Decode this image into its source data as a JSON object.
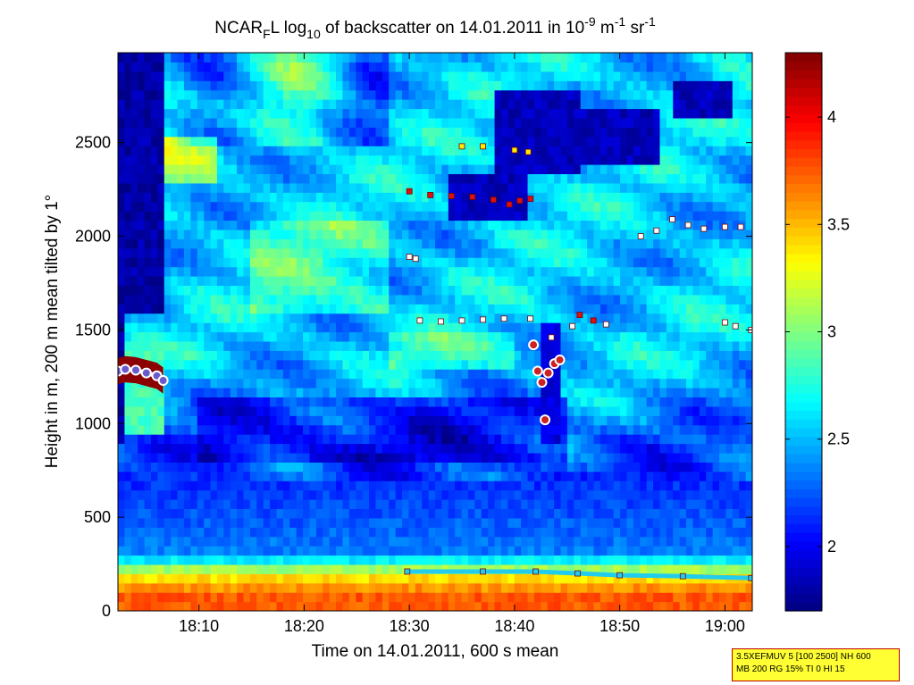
{
  "chart_data": {
    "type": "heatmap",
    "title": {
      "prefix": "NCAR",
      "sub1": "F",
      "mid": "L log",
      "sub2": "10",
      "mid2": " of backscatter on 14.01.2011 in 10",
      "sup1": "-9",
      "mid3": " m",
      "sup2": "-1",
      "mid4": " sr",
      "sup3": "-1"
    },
    "xlabel": "Time on 14.01.2011, 600 s mean",
    "ylabel": "Height in m, 200 m mean tilted by 1°",
    "x_unit": "minutes after 18:00",
    "xlim": [
      2.3,
      62.6
    ],
    "ylim": [
      0,
      2980
    ],
    "xticks": [
      {
        "v": 10,
        "label": "18:10"
      },
      {
        "v": 20,
        "label": "18:20"
      },
      {
        "v": 30,
        "label": "18:30"
      },
      {
        "v": 40,
        "label": "18:40"
      },
      {
        "v": 50,
        "label": "18:50"
      },
      {
        "v": 60,
        "label": "19:00"
      }
    ],
    "yticks": [
      {
        "v": 0,
        "label": "0"
      },
      {
        "v": 500,
        "label": "500"
      },
      {
        "v": 1000,
        "label": "1000"
      },
      {
        "v": 1500,
        "label": "1500"
      },
      {
        "v": 2000,
        "label": "2000"
      },
      {
        "v": 2500,
        "label": "2500"
      }
    ],
    "colorbar": {
      "clim": [
        1.7,
        4.3
      ],
      "ticks": [
        {
          "v": 2,
          "label": "2"
        },
        {
          "v": 2.5,
          "label": "2.5"
        },
        {
          "v": 3,
          "label": "3"
        },
        {
          "v": 3.5,
          "label": "3.5"
        },
        {
          "v": 4,
          "label": "4"
        }
      ],
      "colormap": "jet"
    },
    "grid": false,
    "features": {
      "surface_layer": {
        "top_height": 200,
        "value_bottom": 3.7,
        "value_top": 3.3
      },
      "boundary_layer_top": [
        {
          "t": 29.8,
          "h": 210
        },
        {
          "t": 37,
          "h": 210
        },
        {
          "t": 42,
          "h": 210
        },
        {
          "t": 46,
          "h": 200
        },
        {
          "t": 50,
          "h": 190
        },
        {
          "t": 56,
          "h": 185
        },
        {
          "t": 62.5,
          "h": 175
        }
      ],
      "cloud_layer_low": [
        {
          "t": 2.3,
          "h": 1280
        },
        {
          "t": 3,
          "h": 1290
        },
        {
          "t": 4,
          "h": 1285
        },
        {
          "t": 5,
          "h": 1270
        },
        {
          "t": 6,
          "h": 1255
        },
        {
          "t": 6.6,
          "h": 1230
        }
      ],
      "layer_1500": [
        {
          "t": 31,
          "h": 1550
        },
        {
          "t": 33,
          "h": 1545
        },
        {
          "t": 35,
          "h": 1550
        },
        {
          "t": 37,
          "h": 1555
        },
        {
          "t": 39,
          "h": 1560
        },
        {
          "t": 41.5,
          "h": 1560
        },
        {
          "t": 43.5,
          "h": 1460
        },
        {
          "t": 45.5,
          "h": 1520
        },
        {
          "t": 48.7,
          "h": 1530
        },
        {
          "t": 60,
          "h": 1540
        },
        {
          "t": 61,
          "h": 1520
        },
        {
          "t": 62.5,
          "h": 1500
        }
      ],
      "layer_2200": [
        {
          "t": 30,
          "h": 2240
        },
        {
          "t": 32,
          "h": 2220
        },
        {
          "t": 34,
          "h": 2215
        },
        {
          "t": 36,
          "h": 2210
        },
        {
          "t": 38,
          "h": 2195
        },
        {
          "t": 39.5,
          "h": 2170
        },
        {
          "t": 40.5,
          "h": 2190
        },
        {
          "t": 41.5,
          "h": 2200
        }
      ],
      "layer_2050": [
        {
          "t": 52,
          "h": 2000
        },
        {
          "t": 53.5,
          "h": 2030
        },
        {
          "t": 55,
          "h": 2090
        },
        {
          "t": 56.5,
          "h": 2060
        },
        {
          "t": 58,
          "h": 2040
        },
        {
          "t": 60,
          "h": 2050
        },
        {
          "t": 61.5,
          "h": 2050
        }
      ],
      "layer_2450": [
        {
          "t": 35,
          "h": 2480
        },
        {
          "t": 37,
          "h": 2480
        },
        {
          "t": 40,
          "h": 2460
        },
        {
          "t": 41.3,
          "h": 2450
        }
      ],
      "layer_1870": [
        {
          "t": 30,
          "h": 1890
        },
        {
          "t": 30.6,
          "h": 1880
        }
      ],
      "falling_streak": [
        {
          "t": 41.8,
          "h": 1420
        },
        {
          "t": 42.2,
          "h": 1280
        },
        {
          "t": 42.6,
          "h": 1220
        },
        {
          "t": 43.2,
          "h": 1270
        },
        {
          "t": 43.8,
          "h": 1320
        },
        {
          "t": 44.3,
          "h": 1340
        },
        {
          "t": 42.9,
          "h": 1020
        }
      ],
      "extra_points": [
        {
          "t": 46.2,
          "h": 1580
        },
        {
          "t": 47.5,
          "h": 1550
        }
      ]
    }
  },
  "info_box": {
    "line1": "3.5XEFMUV 5 [100 2500] NH 600",
    "line2": "MB 200 RG 15% TI 0 HI 15"
  },
  "colors": {
    "marker_white": "#ffffff",
    "marker_red": "#dd1111",
    "marker_yellow": "#ffee00",
    "marker_cyan": "#22ccee",
    "marker_edge": "#7a0000"
  }
}
